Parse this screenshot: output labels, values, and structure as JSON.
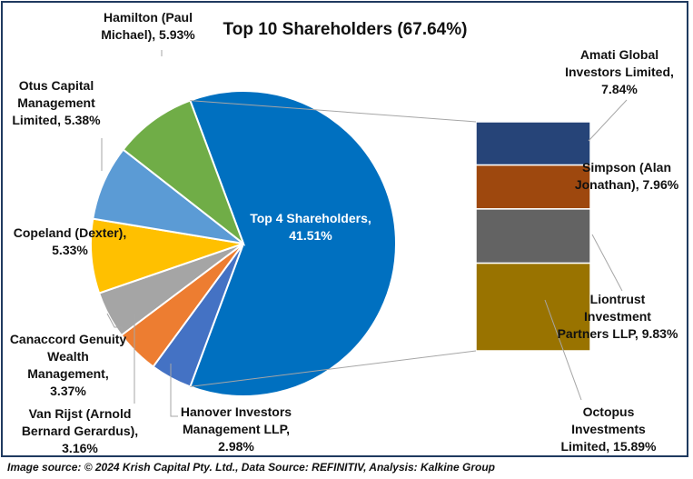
{
  "chart_data": {
    "type": "pie-of-bar",
    "title": "Top 10 Shareholders (67.64%)",
    "pie": [
      {
        "label": "Top 4 Shareholders",
        "value": 41.51,
        "display": "41.51%",
        "color": "#0070C0"
      },
      {
        "label": "Hanover Investors Management LLP",
        "value": 2.98,
        "display": "2.98%",
        "color": "#4472C4"
      },
      {
        "label": "Van Rijst (Arnold Bernard Gerardus)",
        "value": 3.16,
        "display": "3.16%",
        "color": "#ED7D31"
      },
      {
        "label": "Canaccord Genuity Wealth Management",
        "value": 3.37,
        "display": "3.37%",
        "color": "#A5A5A5"
      },
      {
        "label": "Copeland (Dexter)",
        "value": 5.33,
        "display": "5.33%",
        "color": "#FFC000"
      },
      {
        "label": "Otus Capital Management Limited",
        "value": 5.38,
        "display": "5.38%",
        "color": "#5B9BD5"
      },
      {
        "label": "Hamilton (Paul Michael)",
        "value": 5.93,
        "display": "5.93%",
        "color": "#70AD47"
      }
    ],
    "bar": [
      {
        "label": "Amati Global Investors Limited",
        "value": 7.84,
        "display": "7.84%",
        "color": "#264478"
      },
      {
        "label": "Simpson (Alan Jonathan)",
        "value": 7.96,
        "display": "7.96%",
        "color": "#9E480E"
      },
      {
        "label": "Liontrust Investment Partners LLP",
        "value": 9.83,
        "display": "9.83%",
        "color": "#636363"
      },
      {
        "label": "Octopus Investments Limited",
        "value": 15.89,
        "display": "15.89%",
        "color": "#997300"
      }
    ]
  },
  "labels": {
    "top4": [
      "Top 4 Shareholders,",
      "41.51%"
    ],
    "hamilton": [
      "Hamilton (Paul",
      "Michael), 5.93%"
    ],
    "otus": [
      "Otus Capital",
      "Management",
      "Limited, 5.38%"
    ],
    "copeland": [
      "Copeland (Dexter),",
      "5.33%"
    ],
    "canaccord": [
      "Canaccord Genuity",
      "Wealth",
      "Management,",
      "3.37%"
    ],
    "vanrijst": [
      "Van Rijst (Arnold",
      "Bernard Gerardus),",
      "3.16%"
    ],
    "hanover": [
      "Hanover Investors",
      "Management LLP,",
      "2.98%"
    ],
    "amati": [
      "Amati Global",
      "Investors Limited,",
      "7.84%"
    ],
    "simpson": [
      "Simpson (Alan",
      "Jonathan), 7.96%"
    ],
    "liontrust": [
      "Liontrust",
      "Investment",
      "Partners LLP, 9.83%"
    ],
    "octopus": [
      "Octopus",
      "Investments",
      "Limited, 15.89%"
    ]
  },
  "caption": "Image source: © 2024 Krish Capital Pty. Ltd., Data Source: REFINITIV, Analysis: Kalkine Group"
}
